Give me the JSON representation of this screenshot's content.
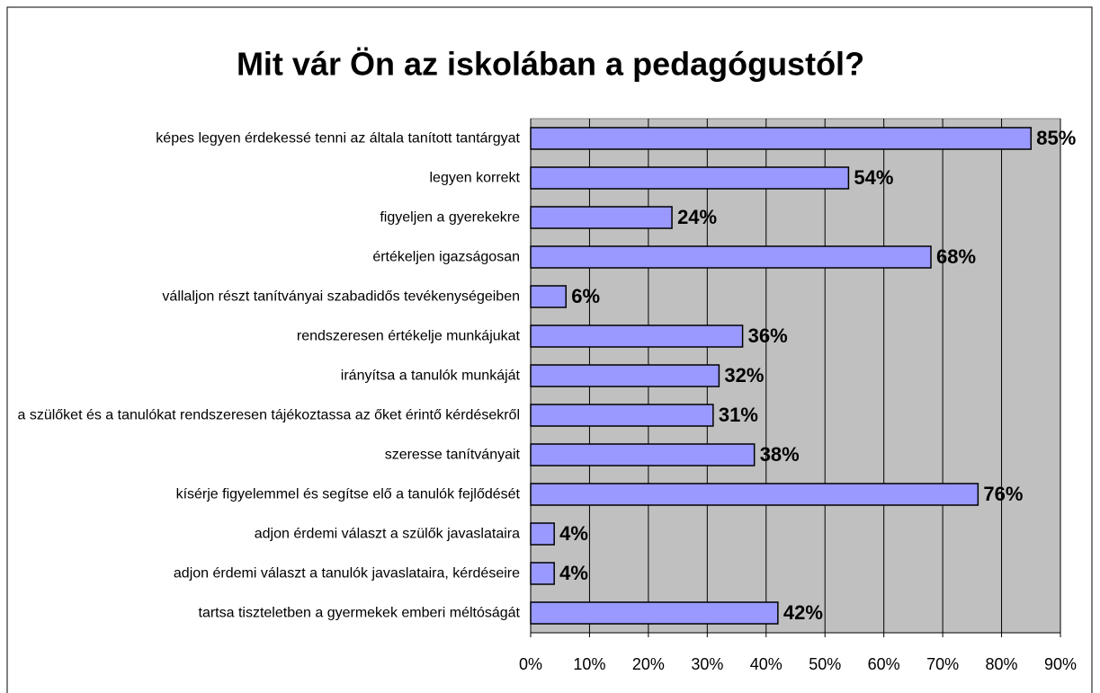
{
  "chart_data": {
    "type": "bar",
    "orientation": "horizontal",
    "title": "Mit vár Ön az iskolában a pedagógustól?",
    "categories": [
      "képes legyen érdekessé tenni az általa tanított tantárgyat",
      "legyen korrekt",
      "figyeljen a gyerekekre",
      "értékeljen igazságosan",
      "vállaljon részt tanítványai szabadidős tevékenységeiben",
      "rendszeresen értékelje munkájukat",
      "irányítsa a tanulók munkáját",
      "a szülőket és a tanulókat rendszeresen tájékoztassa az őket érintő kérdésekről",
      "szeresse tanítványait",
      "kísérje figyelemmel és segítse elő a tanulók fejlődését",
      "adjon érdemi választ a szülők javaslataira",
      "adjon érdemi választ a tanulók javaslataira, kérdéseire",
      "tartsa tiszteletben a gyermekek emberi méltóságát"
    ],
    "values": [
      85,
      54,
      24,
      68,
      6,
      36,
      32,
      31,
      38,
      76,
      4,
      4,
      42
    ],
    "value_labels": [
      "85%",
      "54%",
      "24%",
      "68%",
      "6%",
      "36%",
      "32%",
      "31%",
      "38%",
      "76%",
      "4%",
      "4%",
      "42%"
    ],
    "color": "#9999ff",
    "xlim": [
      0,
      90
    ],
    "xticks": [
      {
        "value": 0,
        "label": "0%"
      },
      {
        "value": 10,
        "label": "10%"
      },
      {
        "value": 20,
        "label": "20%"
      },
      {
        "value": 30,
        "label": "30%"
      },
      {
        "value": 40,
        "label": "40%"
      },
      {
        "value": 50,
        "label": "50%"
      },
      {
        "value": 60,
        "label": "60%"
      },
      {
        "value": 70,
        "label": "70%"
      },
      {
        "value": 80,
        "label": "80%"
      },
      {
        "value": 90,
        "label": "90%"
      }
    ],
    "grid": true
  }
}
